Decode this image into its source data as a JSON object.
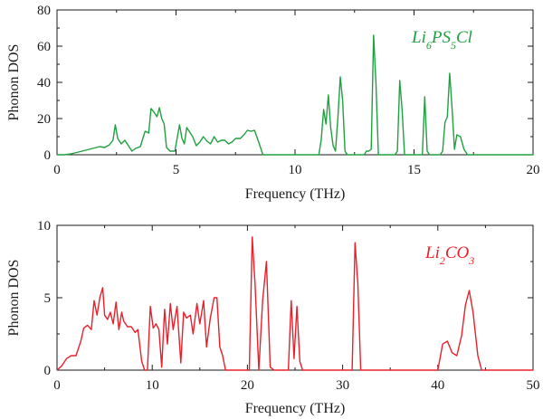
{
  "colors": {
    "green": "#20a040",
    "red": "#e8202a"
  },
  "chart_data": [
    {
      "type": "line",
      "xlabel": "Frequency (THz)",
      "ylabel": "Phonon DOS",
      "xlim": [
        0,
        20
      ],
      "ylim": [
        0,
        80
      ],
      "xticks": [
        "0",
        "5",
        "10",
        "15",
        "20"
      ],
      "yticks": [
        "0",
        "20",
        "40",
        "60",
        "80"
      ],
      "legend": {
        "parts": [
          "Li",
          "6",
          "PS",
          "5",
          "Cl"
        ],
        "placement": "top-right"
      },
      "series": [
        {
          "color": "green",
          "x": [
            0,
            0.3,
            0.6,
            0.9,
            1.2,
            1.5,
            1.8,
            2.0,
            2.2,
            2.35,
            2.45,
            2.55,
            2.7,
            2.85,
            3.0,
            3.15,
            3.3,
            3.5,
            3.7,
            3.85,
            3.95,
            4.05,
            4.2,
            4.3,
            4.4,
            4.5,
            4.6,
            4.75,
            4.95,
            5.15,
            5.25,
            5.35,
            5.45,
            5.55,
            5.7,
            5.85,
            6.0,
            6.15,
            6.3,
            6.45,
            6.6,
            6.75,
            6.9,
            7.05,
            7.2,
            7.35,
            7.5,
            7.7,
            7.85,
            8.0,
            8.15,
            8.3,
            8.5,
            8.65,
            8.8,
            11.0,
            11.1,
            11.2,
            11.3,
            11.4,
            11.5,
            11.6,
            11.7,
            11.8,
            11.9,
            12.0,
            12.1,
            12.2,
            12.9,
            13.0,
            13.1,
            13.2,
            13.3,
            13.4,
            13.5,
            14.2,
            14.3,
            14.4,
            14.5,
            14.6,
            15.35,
            15.45,
            15.55,
            15.65,
            16.1,
            16.2,
            16.3,
            16.4,
            16.5,
            16.6,
            16.7,
            16.8,
            16.95,
            17.1,
            17.25,
            17.5,
            20
          ],
          "values": [
            0,
            0,
            0.5,
            1.5,
            2.5,
            3.5,
            4.5,
            4.0,
            5.5,
            8,
            16.5,
            9,
            6,
            8,
            5,
            2,
            3.5,
            4.5,
            13,
            12,
            25.5,
            24,
            21,
            26,
            20,
            17,
            4,
            2,
            2,
            16.5,
            9,
            6,
            15,
            13,
            10,
            5,
            7,
            10,
            7.5,
            6,
            10,
            7,
            8,
            8,
            6,
            7,
            9,
            9,
            11,
            13.5,
            13,
            13.5,
            6,
            0,
            0,
            0,
            8,
            25,
            17,
            33,
            15,
            5,
            2,
            20,
            43,
            30,
            2,
            0,
            0,
            2,
            2,
            3,
            66,
            40,
            0,
            0,
            2,
            41,
            25,
            0,
            0,
            32,
            2,
            0,
            0,
            2,
            18,
            21,
            45,
            25,
            3,
            11,
            10,
            3,
            0,
            0,
            0
          ]
        }
      ]
    },
    {
      "type": "line",
      "xlabel": "Frequency (THz)",
      "ylabel": "Phonon DOS",
      "xlim": [
        0,
        50
      ],
      "ylim": [
        0,
        10
      ],
      "xticks": [
        "0",
        "10",
        "20",
        "30",
        "40",
        "50"
      ],
      "yticks": [
        "0",
        "5",
        "10"
      ],
      "legend": {
        "parts": [
          "Li",
          "2",
          "CO",
          "3",
          ""
        ],
        "placement": "top-right"
      },
      "series": [
        {
          "color": "red",
          "x": [
            0,
            0.5,
            1.0,
            1.5,
            2.0,
            2.5,
            2.8,
            3.2,
            3.6,
            3.9,
            4.2,
            4.5,
            4.8,
            5.0,
            5.3,
            5.6,
            5.9,
            6.2,
            6.5,
            6.8,
            7.0,
            7.4,
            7.8,
            8.2,
            8.5,
            8.9,
            9.2,
            9.5,
            9.8,
            10.1,
            10.4,
            10.7,
            11.0,
            11.3,
            11.6,
            11.9,
            12.2,
            12.6,
            13.0,
            13.3,
            13.6,
            14.0,
            14.3,
            14.7,
            15.0,
            15.4,
            15.7,
            16.1,
            16.5,
            16.8,
            17.1,
            17.4,
            17.7,
            20.2,
            20.5,
            20.8,
            21.2,
            21.6,
            22.0,
            22.4,
            22.8,
            24.3,
            24.6,
            24.9,
            25.2,
            25.5,
            25.8,
            31.0,
            31.3,
            31.6,
            31.9,
            32.2,
            32.6,
            40.0,
            40.5,
            41.0,
            41.5,
            42.0,
            42.5,
            42.9,
            43.3,
            43.7,
            44.2,
            44.6,
            50
          ],
          "values": [
            0,
            0.3,
            0.8,
            1.0,
            1.0,
            2.0,
            2.9,
            3.1,
            2.8,
            4.8,
            3.8,
            5.0,
            5.7,
            3.8,
            3.5,
            4.0,
            3.2,
            4.7,
            2.8,
            4.0,
            3.4,
            3.0,
            3.0,
            2.6,
            2.8,
            0.6,
            0,
            0,
            4.4,
            2.9,
            3.2,
            2.8,
            0.2,
            4.2,
            1.8,
            4.6,
            2.8,
            4.4,
            0.5,
            4.0,
            3.6,
            3.8,
            2.5,
            4.6,
            3.2,
            4.8,
            1.6,
            3.6,
            5.0,
            5.0,
            1.6,
            1.0,
            0,
            0,
            9.2,
            6.0,
            0,
            4.8,
            7.5,
            0.2,
            0,
            0,
            4.8,
            0.8,
            4.4,
            0.6,
            0,
            0,
            8.8,
            6.0,
            0,
            0,
            0,
            0,
            1.8,
            2.0,
            1.2,
            1.0,
            2.4,
            4.5,
            5.5,
            4.0,
            1.0,
            0,
            0
          ]
        }
      ]
    }
  ]
}
